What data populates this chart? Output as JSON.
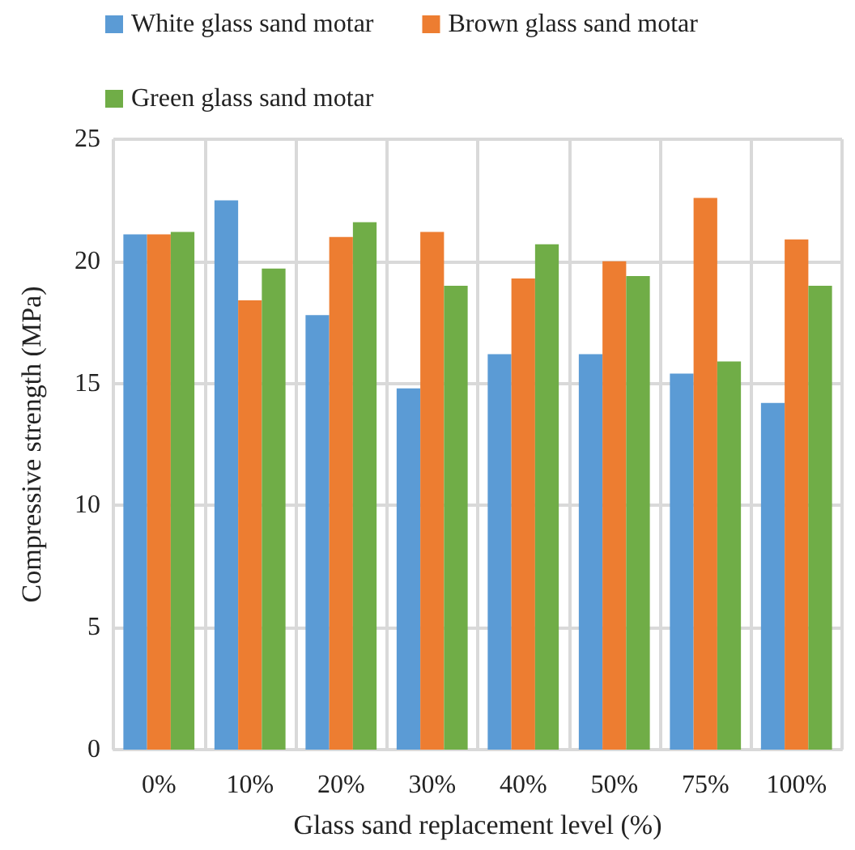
{
  "chart_data": {
    "type": "bar",
    "xlabel": "Glass sand replacement level (%)",
    "ylabel": "Compressive strength (MPa)",
    "categories": [
      "0%",
      "10%",
      "20%",
      "30%",
      "40%",
      "50%",
      "75%",
      "100%"
    ],
    "series": [
      {
        "name": "White glass sand motar",
        "color": "#5b9bd5",
        "values": [
          21.1,
          22.5,
          17.8,
          14.8,
          16.2,
          16.2,
          15.4,
          14.2
        ]
      },
      {
        "name": "Brown glass sand motar",
        "color": "#ed7d31",
        "values": [
          21.1,
          18.4,
          21.0,
          21.2,
          19.3,
          20.0,
          22.6,
          20.9
        ]
      },
      {
        "name": "Green glass sand motar",
        "color": "#70ad47",
        "values": [
          21.2,
          19.7,
          21.6,
          19.0,
          20.7,
          19.4,
          15.9,
          19.0
        ]
      }
    ],
    "ylim": [
      0,
      25
    ],
    "yticks": [
      0,
      5,
      10,
      15,
      20,
      25
    ],
    "grid": true,
    "legend": "top"
  }
}
